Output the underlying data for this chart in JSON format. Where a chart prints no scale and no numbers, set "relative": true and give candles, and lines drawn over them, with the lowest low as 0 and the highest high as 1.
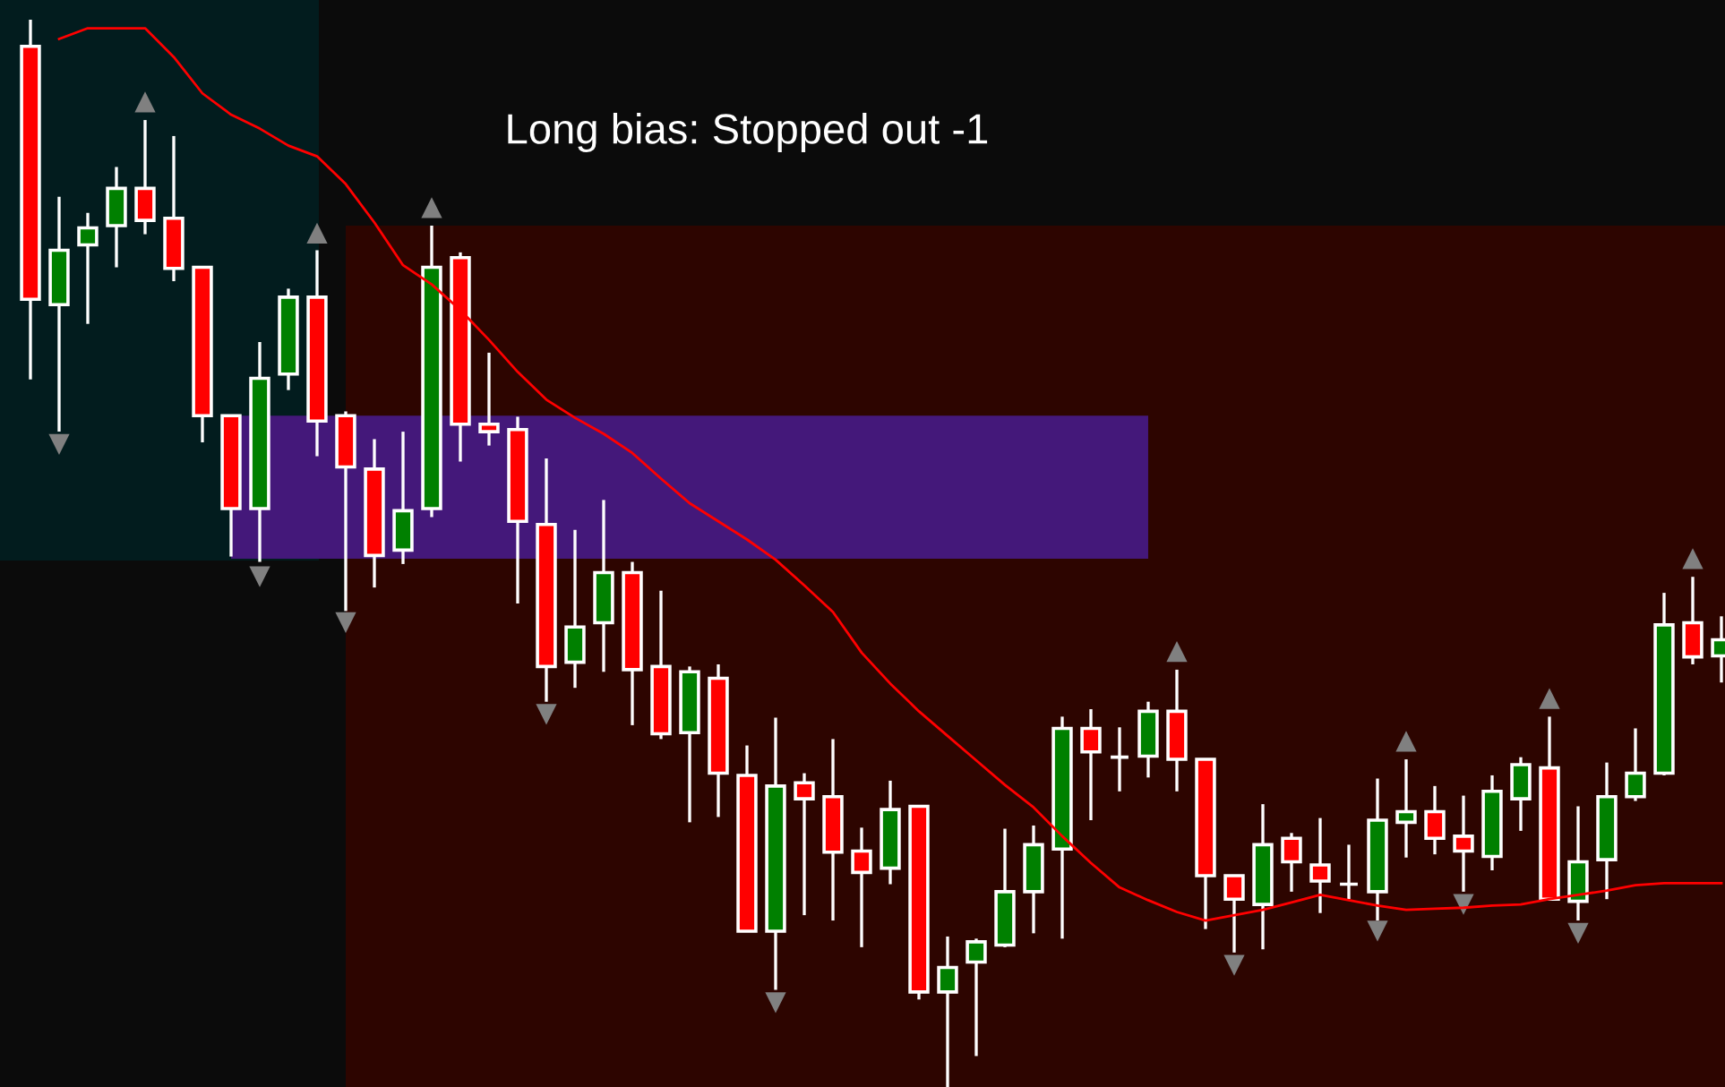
{
  "chart_data": {
    "type": "candlestick",
    "title": "Long bias: Stopped out -1",
    "relative": true,
    "categories": [
      null,
      null,
      null,
      null,
      null,
      null,
      null,
      null,
      null,
      null,
      null,
      null,
      null,
      null,
      null,
      null,
      null,
      null,
      null,
      null,
      null,
      null,
      null,
      null,
      null,
      null,
      null,
      null,
      null,
      null,
      null,
      null,
      null,
      null,
      null,
      null,
      null,
      null,
      null,
      null,
      null,
      null,
      null,
      null,
      null,
      null,
      null,
      null,
      null,
      null,
      null,
      null,
      null,
      null,
      null,
      null,
      null,
      null,
      null,
      null
    ],
    "ohlc": [
      [
        0.975,
        1.0,
        0.663,
        0.738
      ],
      [
        0.733,
        0.834,
        0.614,
        0.784
      ],
      [
        0.789,
        0.819,
        0.715,
        0.805
      ],
      [
        0.807,
        0.862,
        0.768,
        0.842
      ],
      [
        0.842,
        0.906,
        0.799,
        0.812
      ],
      [
        0.814,
        0.891,
        0.755,
        0.767
      ],
      [
        0.768,
        0.768,
        0.604,
        0.629
      ],
      [
        0.629,
        0.629,
        0.497,
        0.542
      ],
      [
        0.542,
        0.698,
        0.492,
        0.664
      ],
      [
        0.668,
        0.748,
        0.653,
        0.74
      ],
      [
        0.74,
        0.784,
        0.591,
        0.624
      ],
      [
        0.629,
        0.633,
        0.446,
        0.581
      ],
      [
        0.579,
        0.607,
        0.468,
        0.498
      ],
      [
        0.503,
        0.614,
        0.49,
        0.54
      ],
      [
        0.542,
        0.807,
        0.534,
        0.768
      ],
      [
        0.777,
        0.782,
        0.586,
        0.621
      ],
      [
        0.621,
        0.688,
        0.601,
        0.614
      ],
      [
        0.616,
        0.628,
        0.453,
        0.53
      ],
      [
        0.527,
        0.589,
        0.361,
        0.394
      ],
      [
        0.398,
        0.522,
        0.374,
        0.431
      ],
      [
        0.435,
        0.55,
        0.389,
        0.482
      ],
      [
        0.482,
        0.492,
        0.339,
        0.391
      ],
      [
        0.394,
        0.465,
        0.326,
        0.331
      ],
      [
        0.332,
        0.394,
        0.248,
        0.389
      ],
      [
        0.383,
        0.396,
        0.253,
        0.294
      ],
      [
        0.292,
        0.32,
        0.146,
        0.146
      ],
      [
        0.146,
        0.346,
        0.091,
        0.282
      ],
      [
        0.285,
        0.294,
        0.161,
        0.27
      ],
      [
        0.272,
        0.326,
        0.156,
        0.22
      ],
      [
        0.221,
        0.243,
        0.131,
        0.201
      ],
      [
        0.205,
        0.287,
        0.19,
        0.26
      ],
      [
        0.263,
        0.263,
        0.082,
        0.089
      ],
      [
        0.089,
        0.141,
        0,
        0.112
      ],
      [
        0.117,
        0.139,
        0.029,
        0.136
      ],
      [
        0.133,
        0.242,
        0.131,
        0.183
      ],
      [
        0.183,
        0.245,
        0.144,
        0.227
      ],
      [
        0.223,
        0.347,
        0.139,
        0.336
      ],
      [
        0.336,
        0.354,
        0.25,
        0.314
      ],
      [
        0.309,
        0.337,
        0.277,
        0.309
      ],
      [
        0.31,
        0.361,
        0.29,
        0.352
      ],
      [
        0.352,
        0.391,
        0.277,
        0.307
      ],
      [
        0.307,
        0.307,
        0.148,
        0.198
      ],
      [
        0.198,
        0.198,
        0.126,
        0.176
      ],
      [
        0.171,
        0.265,
        0.129,
        0.227
      ],
      [
        0.233,
        0.238,
        0.183,
        0.211
      ],
      [
        0.208,
        0.252,
        0.163,
        0.193
      ],
      [
        0.19,
        0.227,
        0.176,
        0.19
      ],
      [
        0.183,
        0.289,
        0.156,
        0.25
      ],
      [
        0.248,
        0.307,
        0.215,
        0.258
      ],
      [
        0.258,
        0.282,
        0.218,
        0.233
      ],
      [
        0.235,
        0.273,
        0.183,
        0.221
      ],
      [
        0.216,
        0.292,
        0.203,
        0.277
      ],
      [
        0.27,
        0.309,
        0.24,
        0.302
      ],
      [
        0.299,
        0.347,
        0.176,
        0.176
      ],
      [
        0.174,
        0.263,
        0.156,
        0.211
      ],
      [
        0.213,
        0.304,
        0.176,
        0.272
      ],
      [
        0.272,
        0.336,
        0.268,
        0.294
      ],
      [
        0.294,
        0.463,
        0.292,
        0.433
      ],
      [
        0.435,
        0.478,
        0.396,
        0.403
      ],
      [
        0.404,
        0.441,
        0.379,
        0.419
      ]
    ],
    "colors": [
      "#ff0000",
      "#008000",
      "#008000",
      "#008000",
      "#ff0000",
      "#ff0000",
      "#ff0000",
      "#ff0000",
      "#008000",
      "#008000",
      "#ff0000",
      "#ff0000",
      "#ff0000",
      "#008000",
      "#008000",
      "#ff0000",
      "#ff0000",
      "#ff0000",
      "#ff0000",
      "#008000",
      "#008000",
      "#ff0000",
      "#ff0000",
      "#008000",
      "#ff0000",
      "#ff0000",
      "#008000",
      "#ff0000",
      "#ff0000",
      "#ff0000",
      "#008000",
      "#ff0000",
      "#008000",
      "#008000",
      "#008000",
      "#008000",
      "#008000",
      "#ff0000",
      "#ffffff",
      "#008000",
      "#ff0000",
      "#ff0000",
      "#ff0000",
      "#008000",
      "#ff0000",
      "#ff0000",
      "#ffffff",
      "#008000",
      "#008000",
      "#ff0000",
      "#ff0000",
      "#008000",
      "#008000",
      "#ff0000",
      "#008000",
      "#008000",
      "#008000",
      "#008000",
      "#ff0000",
      "#008000"
    ],
    "series": [
      {
        "type": "line",
        "color": "#ff0000",
        "values": [
          null,
          0.982,
          0.992,
          0.992,
          0.992,
          0.965,
          0.931,
          0.911,
          0.898,
          0.882,
          0.872,
          0.846,
          0.81,
          0.77,
          0.752,
          0.728,
          0.7,
          0.67,
          0.644,
          0.627,
          0.612,
          0.594,
          0.57,
          0.547,
          0.53,
          0.513,
          0.494,
          0.47,
          0.445,
          0.407,
          0.378,
          0.352,
          0.329,
          0.306,
          0.283,
          0.262,
          0.235,
          0.21,
          0.187,
          0.175,
          0.164,
          0.156,
          0.161,
          0.166,
          0.173,
          0.18,
          0.175,
          0.17,
          0.166,
          0.167,
          0.168,
          0.17,
          0.171,
          0.176,
          0.18,
          0.184,
          0.189,
          0.191,
          0.191,
          0.191
        ]
      },
      {
        "type": "scatter",
        "color": "#808080",
        "marker": "triangle",
        "values": [
          null,
          null,
          null,
          null,
          0.923,
          null,
          null,
          null,
          null,
          null,
          0.8,
          null,
          null,
          null,
          0.824,
          null,
          null,
          null,
          null,
          null,
          null,
          null,
          null,
          null,
          null,
          null,
          null,
          null,
          null,
          null,
          null,
          null,
          null,
          null,
          null,
          null,
          null,
          null,
          null,
          null,
          0.408,
          null,
          null,
          null,
          null,
          null,
          null,
          null,
          0.324,
          null,
          null,
          null,
          null,
          0.364,
          null,
          null,
          null,
          null,
          0.495,
          null
        ]
      },
      {
        "type": "scatter",
        "color": "#808080",
        "marker": "triangle_down",
        "values": [
          null,
          0.602,
          null,
          null,
          null,
          null,
          null,
          null,
          0.478,
          null,
          null,
          0.435,
          null,
          null,
          null,
          null,
          null,
          null,
          0.349,
          null,
          null,
          null,
          null,
          null,
          null,
          null,
          0.079,
          null,
          null,
          null,
          null,
          null,
          null,
          null,
          null,
          null,
          null,
          null,
          null,
          null,
          null,
          null,
          0.114,
          null,
          null,
          null,
          null,
          0.146,
          null,
          null,
          0.171,
          null,
          null,
          null,
          0.144,
          null,
          null,
          null,
          null,
          null
        ]
      }
    ],
    "bands": [
      {
        "axis": "y",
        "from": 0.495,
        "to": 0.629,
        "color": "#44187a"
      }
    ]
  }
}
